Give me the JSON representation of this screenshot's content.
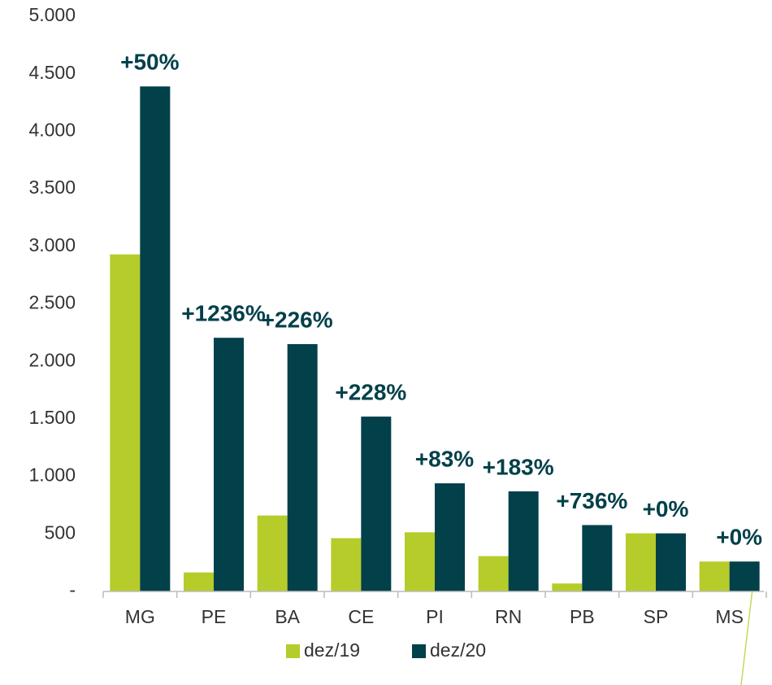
{
  "chart_data": {
    "type": "bar",
    "categories": [
      "MG",
      "PE",
      "BA",
      "CE",
      "PI",
      "RN",
      "PB",
      "SP",
      "MS"
    ],
    "series": [
      {
        "name": "dez/19",
        "color": "#b5cc2a",
        "values": [
          2930,
          165,
          660,
          463,
          514,
          307,
          69,
          505,
          260
        ]
      },
      {
        "name": "dez/20",
        "color": "#02404a",
        "values": [
          4390,
          2205,
          2150,
          1520,
          940,
          870,
          577,
          505,
          260
        ]
      }
    ],
    "annotations": [
      "+50%",
      "+1236%",
      "+226%",
      "+228%",
      "+83%",
      "+183%",
      "+736%",
      "+0%",
      "+0%"
    ],
    "ylim": [
      0,
      5000
    ],
    "yticks": [
      {
        "value": 0,
        "label": "-"
      },
      500,
      {
        "value": 1000,
        "label": "1.000"
      },
      {
        "value": 1500,
        "label": "1.500"
      },
      {
        "value": 2000,
        "label": "2.000"
      },
      {
        "value": 2500,
        "label": "2.500"
      },
      {
        "value": 3000,
        "label": "3.000"
      },
      {
        "value": 3500,
        "label": "3.500"
      },
      {
        "value": 4000,
        "label": "4.000"
      },
      {
        "value": 4500,
        "label": "4.500"
      },
      {
        "value": 5000,
        "label": "5.000"
      }
    ],
    "grid": false,
    "legend": "bottom"
  }
}
